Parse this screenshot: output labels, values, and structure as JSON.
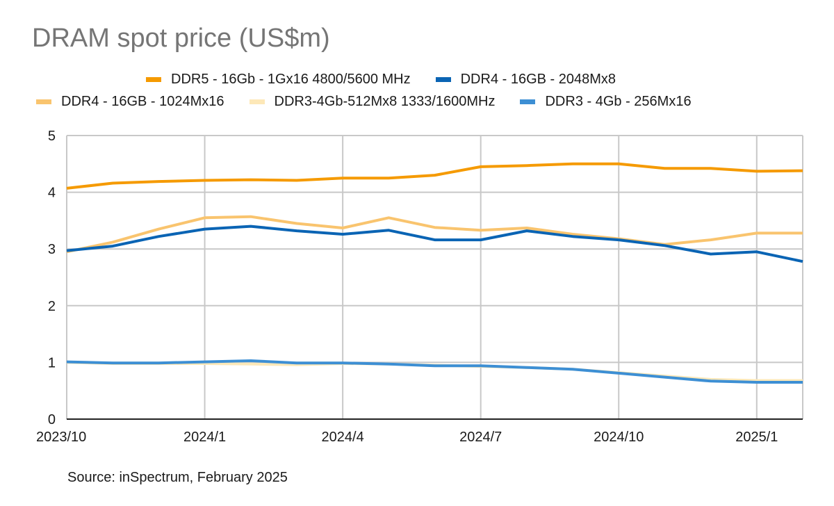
{
  "chart_data": {
    "type": "line",
    "title": "DRAM spot price (US$m)",
    "xlabel": "",
    "ylabel": "",
    "x": [
      "2023/10",
      "2023/11",
      "2023/12",
      "2024/1",
      "2024/2",
      "2024/3",
      "2024/4",
      "2024/5",
      "2024/6",
      "2024/7",
      "2024/8",
      "2024/9",
      "2024/10",
      "2024/11",
      "2024/12",
      "2025/1",
      "2025/2"
    ],
    "x_tick_labels": [
      "2023/10",
      "2024/1",
      "2024/4",
      "2024/7",
      "2024/10",
      "2025/1"
    ],
    "x_tick_indices": [
      0,
      3,
      6,
      9,
      12,
      15
    ],
    "ylim": [
      0,
      5
    ],
    "y_ticks": [
      0,
      1,
      2,
      3,
      4,
      5
    ],
    "grid": true,
    "legend_position": "top",
    "series": [
      {
        "name": "DDR5 - 16Gb - 1Gx16 4800/5600 MHz",
        "color": "#f59a00",
        "values": [
          4.07,
          4.16,
          4.19,
          4.21,
          4.22,
          4.21,
          4.25,
          4.25,
          4.3,
          4.45,
          4.47,
          4.5,
          4.5,
          4.42,
          4.42,
          4.37,
          4.38
        ]
      },
      {
        "name": "DDR4 - 16GB - 2048Mx8",
        "color": "#0a64b4",
        "values": [
          2.97,
          3.05,
          3.22,
          3.35,
          3.4,
          3.32,
          3.26,
          3.33,
          3.16,
          3.16,
          3.32,
          3.22,
          3.16,
          3.06,
          2.91,
          2.95,
          2.78
        ]
      },
      {
        "name": "DDR4 - 16GB - 1024Mx16",
        "color": "#f9c46e",
        "values": [
          2.95,
          3.12,
          3.35,
          3.55,
          3.57,
          3.45,
          3.37,
          3.55,
          3.38,
          3.33,
          3.37,
          3.26,
          3.18,
          3.08,
          3.16,
          3.28,
          3.28
        ]
      },
      {
        "name": "DDR3-4Gb-512Mx8 1333/1600MHz",
        "color": "#fde8b8",
        "values": [
          1.0,
          0.98,
          0.98,
          0.98,
          0.97,
          0.96,
          0.98,
          0.97,
          0.95,
          0.93,
          0.91,
          0.88,
          0.82,
          0.76,
          0.7,
          0.68,
          0.68
        ]
      },
      {
        "name": "DDR3 - 4Gb - 256Mx16",
        "color": "#3d8fd4",
        "values": [
          1.01,
          0.99,
          0.99,
          1.01,
          1.03,
          0.99,
          0.99,
          0.97,
          0.94,
          0.94,
          0.91,
          0.88,
          0.81,
          0.74,
          0.67,
          0.65,
          0.65
        ]
      }
    ],
    "source": "Source: inSpectrum, February 2025"
  },
  "legend_rows": [
    [
      0,
      1
    ],
    [
      2,
      3,
      4
    ]
  ]
}
